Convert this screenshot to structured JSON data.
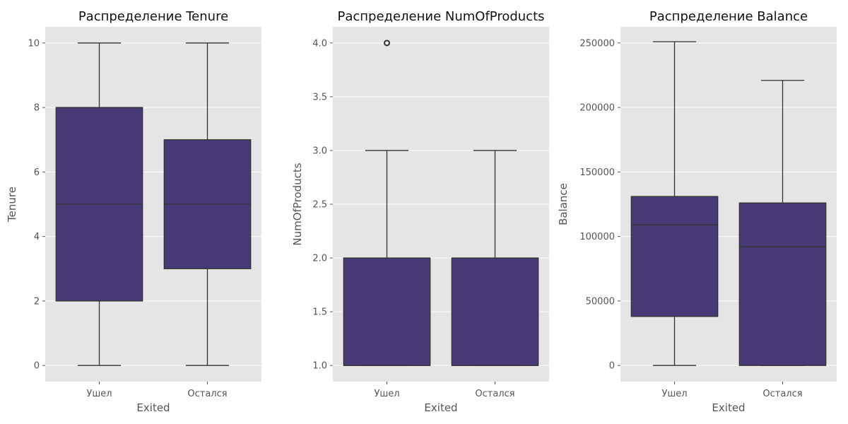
{
  "chart_data": [
    {
      "type": "box",
      "title": "Распределение Tenure",
      "xlabel": "Exited",
      "ylabel": "Tenure",
      "categories": [
        "Ушел",
        "Остался"
      ],
      "ylim": [
        -0.5,
        10.5
      ],
      "yticks": [
        0,
        2,
        4,
        6,
        8,
        10
      ],
      "ytick_labels": [
        "0",
        "2",
        "4",
        "6",
        "8",
        "10"
      ],
      "grid": true,
      "boxes": [
        {
          "whisker_low": 0,
          "q1": 2,
          "median": 5,
          "q3": 8,
          "whisker_high": 10,
          "outliers": []
        },
        {
          "whisker_low": 0,
          "q1": 3,
          "median": 5,
          "q3": 7,
          "whisker_high": 10,
          "outliers": []
        }
      ]
    },
    {
      "type": "box",
      "title": "Распределение NumOfProducts",
      "xlabel": "Exited",
      "ylabel": "NumOfProducts",
      "categories": [
        "Ушел",
        "Остался"
      ],
      "ylim": [
        0.85,
        4.15
      ],
      "yticks": [
        1.0,
        1.5,
        2.0,
        2.5,
        3.0,
        3.5,
        4.0
      ],
      "ytick_labels": [
        "1.0",
        "1.5",
        "2.0",
        "2.5",
        "3.0",
        "3.5",
        "4.0"
      ],
      "grid": true,
      "boxes": [
        {
          "whisker_low": 1,
          "q1": 1,
          "median": 1,
          "q3": 2,
          "whisker_high": 3,
          "outliers": [
            4
          ]
        },
        {
          "whisker_low": 1,
          "q1": 1,
          "median": 1,
          "q3": 2,
          "whisker_high": 3,
          "outliers": []
        }
      ]
    },
    {
      "type": "box",
      "title": "Распределение Balance",
      "xlabel": "Exited",
      "ylabel": "Balance",
      "categories": [
        "Ушел",
        "Остался"
      ],
      "ylim": [
        -12500,
        262500
      ],
      "yticks": [
        0,
        50000,
        100000,
        150000,
        200000,
        250000
      ],
      "ytick_labels": [
        "0",
        "50000",
        "100000",
        "150000",
        "200000",
        "250000"
      ],
      "grid": true,
      "boxes": [
        {
          "whisker_low": 0,
          "q1": 38000,
          "median": 109000,
          "q3": 131000,
          "whisker_high": 251000,
          "outliers": []
        },
        {
          "whisker_low": 0,
          "q1": 0,
          "median": 92000,
          "q3": 126000,
          "whisker_high": 221000,
          "outliers": []
        }
      ]
    }
  ],
  "colors": {
    "box_fill": "#483a76",
    "box_edge": "#333333",
    "plot_bg": "#e5e5e5",
    "grid": "#ffffff"
  }
}
